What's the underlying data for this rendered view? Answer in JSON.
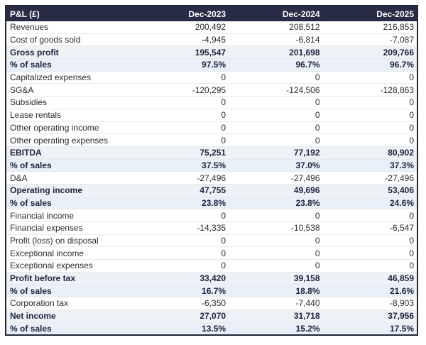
{
  "table": {
    "header_label": "P&L (£)",
    "columns": [
      "Dec-2023",
      "Dec-2024",
      "Dec-2025"
    ],
    "colors": {
      "header_bg": "#282c44",
      "header_text": "#ffffff",
      "outer_border": "#23273c",
      "row_divider": "#e6e9ee",
      "total_row_bg": "#eef1f5",
      "percent_row_bg": "#eaf0f8",
      "bold_text": "#1d2340",
      "normal_text": "#2d2d2d"
    },
    "rows": [
      {
        "label": "Revenues",
        "type": "normal",
        "values": [
          "200,492",
          "208,512",
          "216,853"
        ]
      },
      {
        "label": "Cost of goods sold",
        "type": "normal",
        "values": [
          "-4,945",
          "-6,814",
          "-7,087"
        ]
      },
      {
        "label": "Gross profit",
        "type": "total",
        "values": [
          "195,547",
          "201,698",
          "209,766"
        ]
      },
      {
        "label": "% of sales",
        "type": "percent",
        "values": [
          "97.5%",
          "96.7%",
          "96.7%"
        ]
      },
      {
        "label": "Capitalized expenses",
        "type": "normal",
        "values": [
          "0",
          "0",
          "0"
        ]
      },
      {
        "label": "SG&A",
        "type": "normal",
        "values": [
          "-120,295",
          "-124,506",
          "-128,863"
        ]
      },
      {
        "label": "Subsidies",
        "type": "normal",
        "values": [
          "0",
          "0",
          "0"
        ]
      },
      {
        "label": "Lease rentals",
        "type": "normal",
        "values": [
          "0",
          "0",
          "0"
        ]
      },
      {
        "label": "Other operating income",
        "type": "normal",
        "values": [
          "0",
          "0",
          "0"
        ]
      },
      {
        "label": "Other operating expenses",
        "type": "normal",
        "values": [
          "0",
          "0",
          "0"
        ]
      },
      {
        "label": "EBITDA",
        "type": "total",
        "values": [
          "75,251",
          "77,192",
          "80,902"
        ]
      },
      {
        "label": "% of sales",
        "type": "percent",
        "values": [
          "37.5%",
          "37.0%",
          "37.3%"
        ]
      },
      {
        "label": "D&A",
        "type": "normal",
        "values": [
          "-27,496",
          "-27,496",
          "-27,496"
        ]
      },
      {
        "label": "Operating income",
        "type": "total",
        "values": [
          "47,755",
          "49,696",
          "53,406"
        ]
      },
      {
        "label": "% of sales",
        "type": "percent",
        "values": [
          "23.8%",
          "23.8%",
          "24.6%"
        ]
      },
      {
        "label": "Financial income",
        "type": "normal",
        "values": [
          "0",
          "0",
          "0"
        ]
      },
      {
        "label": "Financial expenses",
        "type": "normal",
        "values": [
          "-14,335",
          "-10,538",
          "-6,547"
        ]
      },
      {
        "label": "Profit (loss) on disposal",
        "type": "normal",
        "values": [
          "0",
          "0",
          "0"
        ]
      },
      {
        "label": "Exceptional income",
        "type": "normal",
        "values": [
          "0",
          "0",
          "0"
        ]
      },
      {
        "label": "Exceptional expenses",
        "type": "normal",
        "values": [
          "0",
          "0",
          "0"
        ]
      },
      {
        "label": "Profit before tax",
        "type": "total",
        "values": [
          "33,420",
          "39,158",
          "46,859"
        ]
      },
      {
        "label": "% of sales",
        "type": "percent",
        "values": [
          "16.7%",
          "18.8%",
          "21.6%"
        ]
      },
      {
        "label": "Corporation tax",
        "type": "normal",
        "values": [
          "-6,350",
          "-7,440",
          "-8,903"
        ]
      },
      {
        "label": "Net income",
        "type": "total",
        "values": [
          "27,070",
          "31,718",
          "37,956"
        ]
      },
      {
        "label": "% of sales",
        "type": "percent",
        "values": [
          "13.5%",
          "15.2%",
          "17.5%"
        ]
      }
    ]
  }
}
